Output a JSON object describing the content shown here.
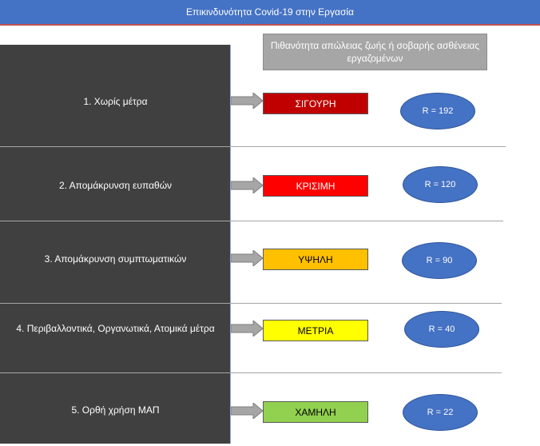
{
  "title": "Επικινδυνότητα Covid-19 στην Εργασία",
  "column_header": "Πιθανότητα απώλειας ζωής ή σοβαρής ασθένειας εργαζομένων",
  "rows": [
    {
      "label": "1. Χωρίς μέτρα",
      "level": "ΣΙΓΟΥΡΗ",
      "level_color": "#c00000",
      "level_text_color": "#ffffff",
      "r_value": "R = 192"
    },
    {
      "label": "2. Απομάκρυνση ευπαθών",
      "level": "ΚΡΙΣΙΜΗ",
      "level_color": "#ff0000",
      "level_text_color": "#ffffff",
      "r_value": "R = 120"
    },
    {
      "label": "3. Απομάκρυνση συμπτωματικών",
      "level": "ΥΨΗΛΗ",
      "level_color": "#ffc000",
      "level_text_color": "#000000",
      "r_value": "R = 90"
    },
    {
      "label": "4.  Περιβαλλοντικά,  Οργανωτικά, Ατομικά μέτρα",
      "level": "ΜΕΤΡΙΑ",
      "level_color": "#ffff00",
      "level_text_color": "#000000",
      "r_value": "R = 40"
    },
    {
      "label": "5. Ορθή χρήση ΜΑΠ",
      "level": "ΧΑΜΗΛΗ",
      "level_color": "#92d050",
      "level_text_color": "#000000",
      "r_value": "R = 22"
    }
  ],
  "colors": {
    "header_bg": "#4472c4",
    "panel_bg": "#404040",
    "ellipse_bg": "#4472c4",
    "arrow_fill": "#a6a6a6"
  }
}
